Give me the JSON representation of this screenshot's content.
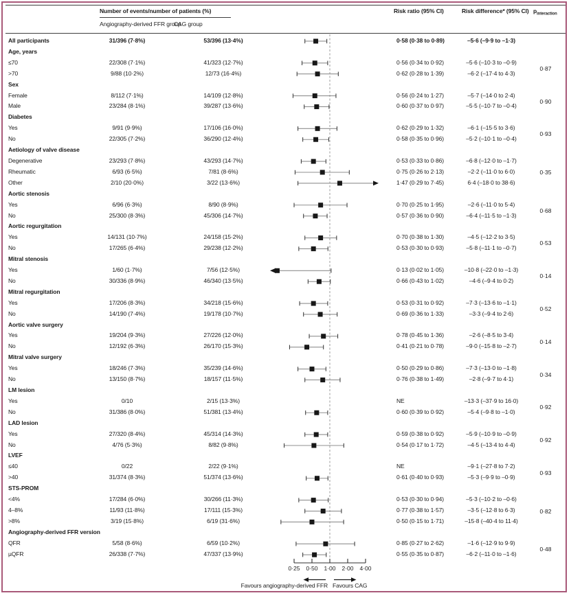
{
  "frame": {
    "border_color": "#a85878"
  },
  "header": {
    "events_header": "Number of events/number of patients (%)",
    "col_ffr": "Angiography-derived FFR group",
    "col_cag": "CAG group",
    "col_rr": "Risk ratio (95% CI)",
    "col_rd": "Risk difference* (95% CI)",
    "col_p_base": "p",
    "col_p_sub": "interaction"
  },
  "footer": {
    "left_label": "Favours angiography-derived FFR",
    "right_label": "Favours CAG"
  },
  "chart_data": {
    "type": "forest",
    "x_scale": "log2",
    "x_ticks": [
      0.25,
      0.5,
      1.0,
      2.0,
      4.0
    ],
    "x_tick_labels": [
      "0·25",
      "0·50",
      "1·00",
      "2·00",
      "4·00"
    ],
    "reference_line": 1.0,
    "xlim": [
      0.25,
      4.0
    ],
    "rows": [
      {
        "label": "All participants",
        "kind": "summary",
        "ffr": "31/396 (7·8%)",
        "cag": "53/396 (13·4%)",
        "rr_text": "0·58 (0·38 to 0·89)",
        "rd_text": "–5·6 (–9·9 to –1·3)",
        "est": 0.58,
        "lo": 0.38,
        "hi": 0.89
      },
      {
        "label": "Age, years",
        "kind": "header"
      },
      {
        "label": "≤70",
        "kind": "item",
        "ffr": "22/308 (7·1%)",
        "cag": "41/323 (12·7%)",
        "rr_text": "0·56 (0·34 to 0·92)",
        "rd_text": "–5·6 (–10·3 to –0·9)",
        "est": 0.56,
        "lo": 0.34,
        "hi": 0.92,
        "p": "0·87",
        "p_span": 2
      },
      {
        "label": ">70",
        "kind": "item",
        "ffr": "9/88 (10·2%)",
        "cag": "12/73 (16·4%)",
        "rr_text": "0·62 (0·28 to 1·39)",
        "rd_text": "–6·2 (–17·4 to 4·3)",
        "est": 0.62,
        "lo": 0.28,
        "hi": 1.39
      },
      {
        "label": "Sex",
        "kind": "header"
      },
      {
        "label": "Female",
        "kind": "item",
        "ffr": "8/112 (7·1%)",
        "cag": "14/109 (12·8%)",
        "rr_text": "0·56 (0·24 to 1·27)",
        "rd_text": "–5·7 (–14·0 to 2·4)",
        "est": 0.56,
        "lo": 0.24,
        "hi": 1.27,
        "p": "0·90",
        "p_span": 2
      },
      {
        "label": "Male",
        "kind": "item",
        "ffr": "23/284 (8·1%)",
        "cag": "39/287 (13·6%)",
        "rr_text": "0·60 (0·37 to 0·97)",
        "rd_text": "–5·5 (–10·7 to –0·4)",
        "est": 0.6,
        "lo": 0.37,
        "hi": 0.97
      },
      {
        "label": "Diabetes",
        "kind": "header"
      },
      {
        "label": "Yes",
        "kind": "item",
        "ffr": "9/91 (9·9%)",
        "cag": "17/106 (16·0%)",
        "rr_text": "0·62 (0·29 to 1·32)",
        "rd_text": "–6·1 (–15·5 to 3·6)",
        "est": 0.62,
        "lo": 0.29,
        "hi": 1.32,
        "p": "0·93",
        "p_span": 2
      },
      {
        "label": "No",
        "kind": "item",
        "ffr": "22/305 (7·2%)",
        "cag": "36/290 (12·4%)",
        "rr_text": "0·58 (0·35 to 0·96)",
        "rd_text": "–5·2 (–10·1 to –0·4)",
        "est": 0.58,
        "lo": 0.35,
        "hi": 0.96
      },
      {
        "label": "Aetiology of valve disease",
        "kind": "header"
      },
      {
        "label": "Degenerative",
        "kind": "item",
        "ffr": "23/293 (7·8%)",
        "cag": "43/293 (14·7%)",
        "rr_text": "0·53 (0·33 to 0·86)",
        "rd_text": "–6·8 (–12·0 to –1·7)",
        "est": 0.53,
        "lo": 0.33,
        "hi": 0.86,
        "p": "0·35",
        "p_span": 3
      },
      {
        "label": "Rheumatic",
        "kind": "item",
        "ffr": "6/93 (6·5%)",
        "cag": "7/81 (8·6%)",
        "rr_text": "0·75 (0·26 to 2·13)",
        "rd_text": "–2·2 (–11·0 to 6·0)",
        "est": 0.75,
        "lo": 0.26,
        "hi": 2.13
      },
      {
        "label": "Other",
        "kind": "item",
        "ffr": "2/10 (20·0%)",
        "cag": "3/22 (13·6%)",
        "rr_text": "1·47 (0·29 to 7·45)",
        "rd_text": "6·4 (–18·0 to 38·6)",
        "est": 1.47,
        "lo": 0.29,
        "hi": 7.45
      },
      {
        "label": "Aortic stenosis",
        "kind": "header"
      },
      {
        "label": "Yes",
        "kind": "item",
        "ffr": "6/96 (6·3%)",
        "cag": "8/90 (8·9%)",
        "rr_text": "0·70 (0·25 to 1·95)",
        "rd_text": "–2·6 (–11·0 to 5·4)",
        "est": 0.7,
        "lo": 0.25,
        "hi": 1.95,
        "p": "0·68",
        "p_span": 2
      },
      {
        "label": "No",
        "kind": "item",
        "ffr": "25/300 (8·3%)",
        "cag": "45/306 (14·7%)",
        "rr_text": "0·57 (0·36 to 0·90)",
        "rd_text": "–6·4 (–11·5 to –1·3)",
        "est": 0.57,
        "lo": 0.36,
        "hi": 0.9
      },
      {
        "label": "Aortic regurgitation",
        "kind": "header"
      },
      {
        "label": "Yes",
        "kind": "item",
        "ffr": "14/131 (10·7%)",
        "cag": "24/158 (15·2%)",
        "rr_text": "0·70 (0·38 to 1·30)",
        "rd_text": "–4·5 (–12·2 to 3·5)",
        "est": 0.7,
        "lo": 0.38,
        "hi": 1.3,
        "p": "0·53",
        "p_span": 2
      },
      {
        "label": "No",
        "kind": "item",
        "ffr": "17/265 (6·4%)",
        "cag": "29/238 (12·2%)",
        "rr_text": "0·53 (0·30 to 0·93)",
        "rd_text": "–5·8 (–11·1 to –0·7)",
        "est": 0.53,
        "lo": 0.3,
        "hi": 0.93
      },
      {
        "label": "Mitral stenosis",
        "kind": "header"
      },
      {
        "label": "Yes",
        "kind": "item",
        "ffr": "1/60 (1·7%)",
        "cag": "7/56 (12·5%)",
        "rr_text": "0·13 (0·02 to 1·05)",
        "rd_text": "–10·8 (–22·0 to –1·3)",
        "est": 0.13,
        "lo": 0.02,
        "hi": 1.05,
        "p": "0·14",
        "p_span": 2
      },
      {
        "label": "No",
        "kind": "item",
        "ffr": "30/336 (8·9%)",
        "cag": "46/340 (13·5%)",
        "rr_text": "0·66 (0·43 to 1·02)",
        "rd_text": "–4·6 (–9·4 to 0·2)",
        "est": 0.66,
        "lo": 0.43,
        "hi": 1.02
      },
      {
        "label": "Mitral regurgitation",
        "kind": "header"
      },
      {
        "label": "Yes",
        "kind": "item",
        "ffr": "17/206 (8·3%)",
        "cag": "34/218 (15·6%)",
        "rr_text": "0·53 (0·31 to 0·92)",
        "rd_text": "–7·3 (–13·6 to –1·1)",
        "est": 0.53,
        "lo": 0.31,
        "hi": 0.92,
        "p": "0·52",
        "p_span": 2
      },
      {
        "label": "No",
        "kind": "item",
        "ffr": "14/190 (7·4%)",
        "cag": "19/178 (10·7%)",
        "rr_text": "0·69 (0·36 to 1·33)",
        "rd_text": "–3·3 (–9·4 to 2·6)",
        "est": 0.69,
        "lo": 0.36,
        "hi": 1.33
      },
      {
        "label": "Aortic valve surgery",
        "kind": "header"
      },
      {
        "label": "Yes",
        "kind": "item",
        "ffr": "19/204 (9·3%)",
        "cag": "27/226 (12·0%)",
        "rr_text": "0·78 (0·45 to 1·36)",
        "rd_text": "–2·6 (–8·5 to 3·4)",
        "est": 0.78,
        "lo": 0.45,
        "hi": 1.36,
        "p": "0·14",
        "p_span": 2
      },
      {
        "label": "No",
        "kind": "item",
        "ffr": "12/192 (6·3%)",
        "cag": "26/170 (15·3%)",
        "rr_text": "0·41 (0·21 to 0·78)",
        "rd_text": "–9·0 (–15·8 to –2·7)",
        "est": 0.41,
        "lo": 0.21,
        "hi": 0.78
      },
      {
        "label": "Mitral valve surgery",
        "kind": "header"
      },
      {
        "label": "Yes",
        "kind": "item",
        "ffr": "18/246 (7·3%)",
        "cag": "35/239 (14·6%)",
        "rr_text": "0·50 (0·29 to 0·86)",
        "rd_text": "–7·3 (–13·0 to –1·8)",
        "est": 0.5,
        "lo": 0.29,
        "hi": 0.86,
        "p": "0·34",
        "p_span": 2
      },
      {
        "label": "No",
        "kind": "item",
        "ffr": "13/150 (8·7%)",
        "cag": "18/157 (11·5%)",
        "rr_text": "0·76 (0·38 to 1·49)",
        "rd_text": "–2·8 (–9·7 to 4·1)",
        "est": 0.76,
        "lo": 0.38,
        "hi": 1.49
      },
      {
        "label": "LM lesion",
        "kind": "header"
      },
      {
        "label": "Yes",
        "kind": "item",
        "ffr": "0/10",
        "cag": "2/15 (13·3%)",
        "rr_text": "NE",
        "rd_text": "–13·3 (–37·9 to 16·0)",
        "p": "0·92",
        "p_span": 2
      },
      {
        "label": "No",
        "kind": "item",
        "ffr": "31/386 (8·0%)",
        "cag": "51/381 (13·4%)",
        "rr_text": "0·60 (0·39 to 0·92)",
        "rd_text": "–5·4 (–9·8 to –1·0)",
        "est": 0.6,
        "lo": 0.39,
        "hi": 0.92
      },
      {
        "label": "LAD lesion",
        "kind": "header"
      },
      {
        "label": "Yes",
        "kind": "item",
        "ffr": "27/320 (8·4%)",
        "cag": "45/314 (14·3%)",
        "rr_text": "0·59 (0·38 to 0·92)",
        "rd_text": "–5·9 (–10·9 to –0·9)",
        "est": 0.59,
        "lo": 0.38,
        "hi": 0.92,
        "p": "0·92",
        "p_span": 2
      },
      {
        "label": "No",
        "kind": "item",
        "ffr": "4/76 (5·3%)",
        "cag": "8/82 (9·8%)",
        "rr_text": "0·54 (0·17 to 1·72)",
        "rd_text": "–4·5 (–13·4 to 4·4)",
        "est": 0.54,
        "lo": 0.17,
        "hi": 1.72
      },
      {
        "label": "LVEF",
        "kind": "header"
      },
      {
        "label": "≤40",
        "kind": "item",
        "ffr": "0/22",
        "cag": "2/22 (9·1%)",
        "rr_text": "NE",
        "rd_text": "–9·1 (–27·8 to 7·2)",
        "p": "0·93",
        "p_span": 2
      },
      {
        "label": ">40",
        "kind": "item",
        "ffr": "31/374 (8·3%)",
        "cag": "51/374 (13·6%)",
        "rr_text": "0·61 (0·40 to 0·93)",
        "rd_text": "–5·3 (–9·9 to –0·9)",
        "est": 0.61,
        "lo": 0.4,
        "hi": 0.93
      },
      {
        "label": "STS-PROM",
        "kind": "header"
      },
      {
        "label": "<4%",
        "kind": "item",
        "ffr": "17/284 (6·0%)",
        "cag": "30/266 (11·3%)",
        "rr_text": "0·53 (0·30 to 0·94)",
        "rd_text": "–5·3 (–10·2 to –0·6)",
        "est": 0.53,
        "lo": 0.3,
        "hi": 0.94,
        "p": "0·82",
        "p_span": 3
      },
      {
        "label": "4–8%",
        "kind": "item",
        "ffr": "11/93 (11·8%)",
        "cag": "17/111 (15·3%)",
        "rr_text": "0·77 (0·38 to 1·57)",
        "rd_text": "–3·5 (–12·8 to 6·3)",
        "est": 0.77,
        "lo": 0.38,
        "hi": 1.57
      },
      {
        "label": ">8%",
        "kind": "item",
        "ffr": "3/19 (15·8%)",
        "cag": "6/19 (31·6%)",
        "rr_text": "0·50 (0·15 to 1·71)",
        "rd_text": "–15·8 (–40·4 to 11·4)",
        "est": 0.5,
        "lo": 0.15,
        "hi": 1.71
      },
      {
        "label": "Angiography-derived FFR version",
        "kind": "header"
      },
      {
        "label": "QFR",
        "kind": "item",
        "ffr": "5/58 (8·6%)",
        "cag": "6/59 (10·2%)",
        "rr_text": "0·85 (0·27 to 2·62)",
        "rd_text": "–1·6 (–12·9 to 9·9)",
        "est": 0.85,
        "lo": 0.27,
        "hi": 2.62,
        "p": "0·48",
        "p_span": 2
      },
      {
        "label": "µQFR",
        "kind": "item",
        "ffr": "26/338 (7·7%)",
        "cag": "47/337 (13·9%)",
        "rr_text": "0·55 (0·35 to 0·87)",
        "rd_text": "–6·2 (–11·0 to –1·6)",
        "est": 0.55,
        "lo": 0.35,
        "hi": 0.87
      }
    ]
  }
}
